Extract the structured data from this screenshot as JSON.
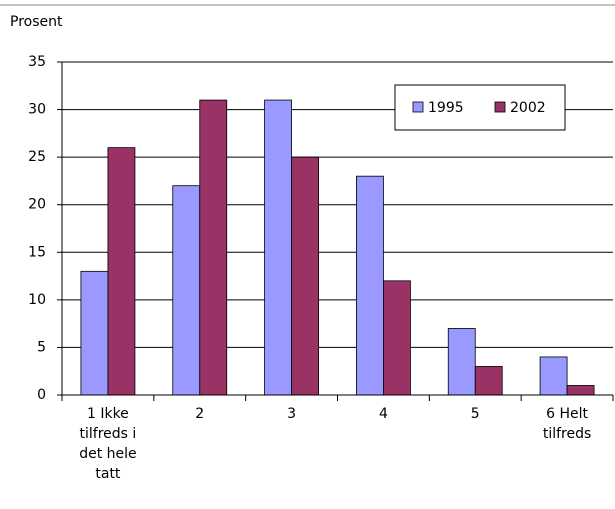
{
  "chart_data": {
    "type": "bar",
    "y_label": "Prosent",
    "categories": [
      "1 Ikke tilfreds i det hele tatt",
      "2",
      "3",
      "4",
      "5",
      "6 Helt tilfreds"
    ],
    "series": [
      {
        "name": "1995",
        "color": "#9999ff",
        "values": [
          13,
          22,
          31,
          23,
          7,
          4
        ]
      },
      {
        "name": "2002",
        "color": "#993366",
        "values": [
          26,
          31,
          25,
          12,
          3,
          1
        ]
      }
    ],
    "ylim": [
      0,
      35
    ],
    "yticks": [
      0,
      5,
      10,
      15,
      20,
      25,
      30,
      35
    ],
    "grid": true,
    "legend": "upper right"
  }
}
